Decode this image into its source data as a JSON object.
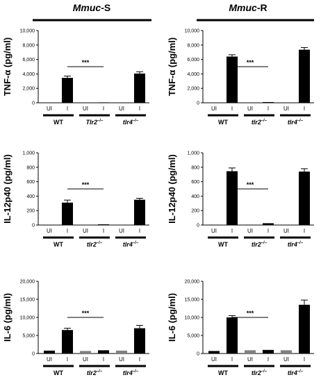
{
  "groups": [
    {
      "label_italic": "Mmuc",
      "label_suffix": "-S"
    },
    {
      "label_italic": "Mmuc",
      "label_suffix": "-R"
    }
  ],
  "chart_data": [
    {
      "type": "bar",
      "panel": "Mmuc-S TNF-alpha",
      "ylabel": "TNF-α (pg/ml)",
      "ylim": [
        0,
        10000
      ],
      "yticks": [
        "0",
        "2,000",
        "4,000",
        "6,000",
        "8,000",
        "10,000"
      ],
      "categories": [
        "UI",
        "I",
        "UI",
        "I",
        "UI",
        "I"
      ],
      "strains": [
        "WT",
        "Tlr2–/–",
        "tlr4–/–"
      ],
      "values": [
        0,
        3450,
        0,
        60,
        0,
        4050
      ],
      "errors": [
        0,
        250,
        0,
        0,
        0,
        250
      ],
      "bar_colors": [
        "#000000",
        "#000000",
        "#000000",
        "#000000",
        "#000000",
        "#000000"
      ],
      "significance": "***"
    },
    {
      "type": "bar",
      "panel": "Mmuc-R TNF-alpha",
      "ylabel": "TNF-α (pg/ml)",
      "ylim": [
        0,
        10000
      ],
      "yticks": [
        "0",
        "2,000",
        "4,000",
        "6,000",
        "8,000",
        "10,000"
      ],
      "categories": [
        "UI",
        "I",
        "UI",
        "I",
        "UI",
        "I"
      ],
      "strains": [
        "WT",
        "tlr2–/–",
        "tlr4–/–"
      ],
      "values": [
        0,
        6400,
        0,
        100,
        0,
        7350
      ],
      "errors": [
        0,
        250,
        0,
        0,
        0,
        300
      ],
      "bar_colors": [
        "#000000",
        "#000000",
        "#000000",
        "#000000",
        "#000000",
        "#000000"
      ],
      "significance": "***"
    },
    {
      "type": "bar",
      "panel": "Mmuc-S IL-12p40",
      "ylabel": "IL-12p40 (pg/ml)",
      "ylim": [
        0,
        1000
      ],
      "yticks": [
        "0",
        "200",
        "400",
        "600",
        "800",
        "1,000"
      ],
      "categories": [
        "UI",
        "I",
        "UI",
        "I",
        "UI",
        "I"
      ],
      "strains": [
        "WT",
        "tlr2–/–",
        "tlr4–/–"
      ],
      "values": [
        0,
        310,
        0,
        10,
        0,
        350
      ],
      "errors": [
        0,
        35,
        0,
        0,
        0,
        20
      ],
      "bar_colors": [
        "#000000",
        "#000000",
        "#000000",
        "#000000",
        "#000000",
        "#000000"
      ],
      "significance": "***"
    },
    {
      "type": "bar",
      "panel": "Mmuc-R IL-12p40",
      "ylabel": "IL-12p40 (pg/ml)",
      "ylim": [
        0,
        1000
      ],
      "yticks": [
        "0",
        "200",
        "400",
        "600",
        "800",
        "1,000"
      ],
      "categories": [
        "UI",
        "I",
        "UI",
        "I",
        "UI",
        "I"
      ],
      "strains": [
        "WT",
        "tlr2–/–",
        "tlr4–/–"
      ],
      "values": [
        5,
        745,
        5,
        25,
        0,
        740
      ],
      "errors": [
        0,
        45,
        0,
        0,
        0,
        40
      ],
      "bar_colors": [
        "#000000",
        "#000000",
        "#000000",
        "#000000",
        "#000000",
        "#000000"
      ],
      "significance": "***"
    },
    {
      "type": "bar",
      "panel": "Mmuc-S IL-6",
      "ylabel": "IL-6 (pg/ml)",
      "ylim": [
        0,
        20000
      ],
      "yticks": [
        "0",
        "5,000",
        "10,000",
        "15,000",
        "20,000"
      ],
      "categories": [
        "UI",
        "I",
        "UI",
        "I",
        "UI",
        "I"
      ],
      "strains": [
        "WT",
        "tlr2–/–",
        "tlr4–/–"
      ],
      "values": [
        800,
        6500,
        700,
        900,
        800,
        7000
      ],
      "errors": [
        0,
        500,
        0,
        0,
        0,
        800
      ],
      "bar_colors": [
        "#000000",
        "#000000",
        "#7f7f7f",
        "#000000",
        "#7f7f7f",
        "#000000"
      ],
      "significance": "***"
    },
    {
      "type": "bar",
      "panel": "Mmuc-R IL-6",
      "ylabel": "IL-6 (pg/ml)",
      "ylim": [
        0,
        20000
      ],
      "yticks": [
        "0",
        "5,000",
        "10,000",
        "15,000",
        "20,000"
      ],
      "categories": [
        "UI",
        "I",
        "UI",
        "I",
        "UI",
        "I"
      ],
      "strains": [
        "WT",
        "tlr2–/–",
        "tlr4–/–"
      ],
      "values": [
        700,
        10000,
        900,
        1000,
        900,
        13500
      ],
      "errors": [
        0,
        500,
        0,
        0,
        0,
        1300
      ],
      "bar_colors": [
        "#000000",
        "#000000",
        "#7f7f7f",
        "#000000",
        "#7f7f7f",
        "#000000"
      ],
      "significance": "***"
    }
  ]
}
